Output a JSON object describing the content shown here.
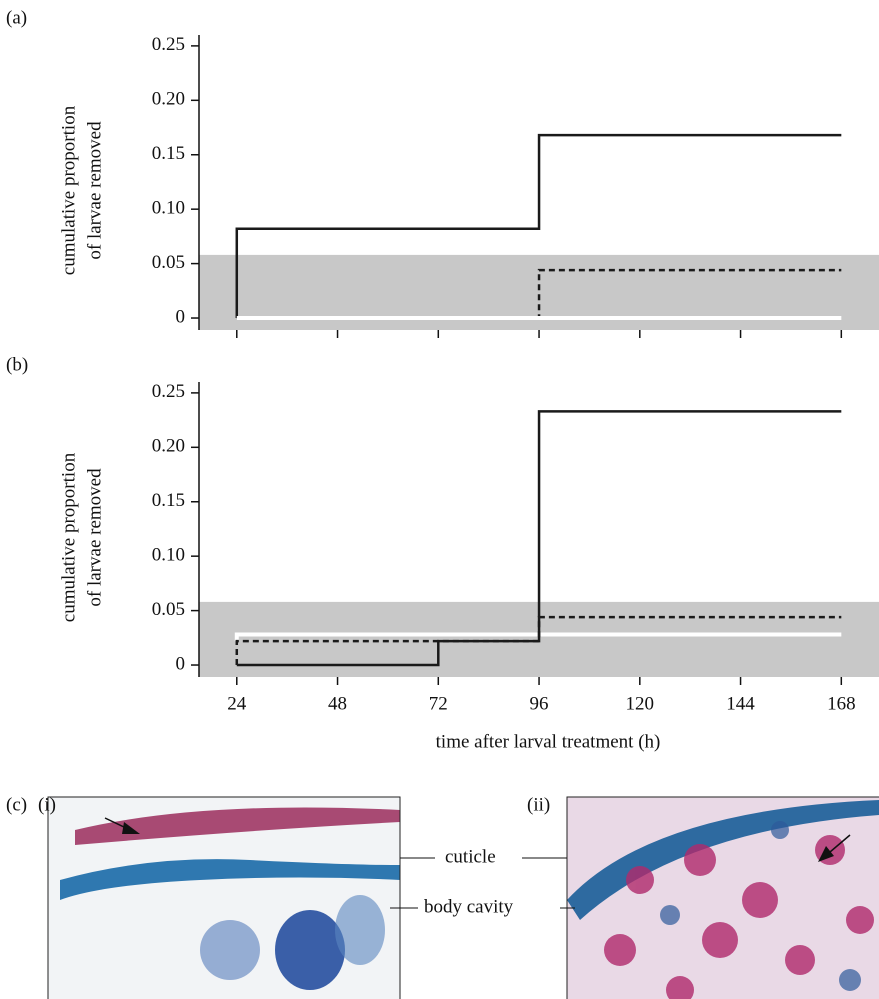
{
  "chart_data": [
    {
      "type": "step",
      "panel_label": "(a)",
      "ylabel": [
        "cumulative proportion",
        "of larvae removed"
      ],
      "xlim": [
        15,
        176.5
      ],
      "ylim": [
        -0.011,
        0.26
      ],
      "xticks": [
        24,
        48,
        72,
        96,
        120,
        144,
        168
      ],
      "xtick_labels": false,
      "yticks": [
        0,
        0.05,
        {
          "value": 0.1,
          "label": "0.10"
        },
        0.15,
        {
          "value": 0.2,
          "label": "0.20"
        },
        0.25
      ],
      "shade_below": 0.058,
      "shade_color": "#c8c8c8",
      "series": [
        {
          "color": "#1a1a1a",
          "dash": false,
          "x": [
            24,
            24,
            96,
            168
          ],
          "values": [
            0,
            0.082,
            0.168,
            0.168
          ]
        },
        {
          "color": "#1a1a1a",
          "dash": true,
          "x": [
            24,
            96,
            168
          ],
          "values": [
            0,
            0.044,
            0.044
          ]
        },
        {
          "color": "#ffffff",
          "dash": false,
          "x": [
            24,
            168
          ],
          "values": [
            0,
            0
          ]
        }
      ]
    },
    {
      "type": "step",
      "panel_label": "(b)",
      "ylabel": [
        "cumulative proportion",
        "of larvae removed"
      ],
      "xlabel": "time after larval treatment (h)",
      "xlim": [
        15,
        176.5
      ],
      "ylim": [
        -0.011,
        0.26
      ],
      "xticks": [
        24,
        48,
        72,
        96,
        120,
        144,
        168
      ],
      "xtick_labels": true,
      "yticks": [
        0,
        0.05,
        {
          "value": 0.1,
          "label": "0.10"
        },
        0.15,
        {
          "value": 0.2,
          "label": "0.20"
        },
        0.25
      ],
      "shade_below": 0.058,
      "shade_color": "#c8c8c8",
      "series": [
        {
          "color": "#ffffff",
          "dash": false,
          "x": [
            24,
            24,
            168
          ],
          "values": [
            0.022,
            0.028,
            0.028
          ]
        },
        {
          "color": "#1a1a1a",
          "dash": true,
          "x": [
            24,
            24,
            96,
            168
          ],
          "values": [
            0,
            0.022,
            0.044,
            0.044
          ]
        },
        {
          "color": "#1a1a1a",
          "dash": false,
          "x": [
            24,
            72,
            96,
            168
          ],
          "values": [
            0,
            0.022,
            0.233,
            0.233
          ]
        }
      ]
    }
  ],
  "figure_c": {
    "label": "(c)",
    "panels": [
      "(i)",
      "(ii)"
    ],
    "annotations": [
      "cuticle",
      "body cavity"
    ]
  }
}
